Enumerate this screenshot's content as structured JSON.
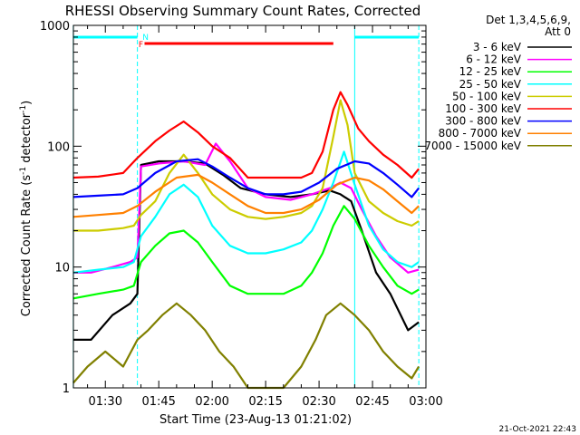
{
  "chart_data": {
    "type": "line",
    "title": "RHESSI Observing Summary Count Rates, Corrected",
    "xlabel": "Start Time (23-Aug-13 01:21:02)",
    "ylabel_main": "Corrected Count Rate (s",
    "ylabel_sup1": "-1",
    "ylabel_mid": " detector",
    "ylabel_sup2": "-1",
    "ylabel_end": ")",
    "y_scale": "log",
    "ylim": [
      1,
      1000
    ],
    "xlim": [
      "01:21:02",
      "03:00:00"
    ],
    "x_ticks": [
      "01:30",
      "01:45",
      "02:00",
      "02:15",
      "02:30",
      "02:45",
      "03:00"
    ],
    "y_ticks": [
      "1",
      "10",
      "100",
      "1000"
    ],
    "legend": {
      "placement": "right",
      "header1": "Det 1,3,4,5,6,9,",
      "header2": "Att 0"
    },
    "timestamp": "21-Oct-2021 22:43",
    "flags": [
      {
        "label": "F",
        "start": "01:41",
        "end": "02:34",
        "color": "#ff0000"
      },
      {
        "label": "N",
        "start": "01:39",
        "end": "01:39",
        "color": "#00ffff"
      }
    ],
    "night_intervals": [
      [
        "01:21",
        "01:39"
      ],
      [
        "02:40",
        "02:58"
      ]
    ],
    "series": [
      {
        "name": "3 - 6 keV",
        "color": "#000000",
        "t": [
          "01:21",
          "01:26",
          "01:32",
          "01:37",
          "01:39",
          "01:40",
          "01:45",
          "01:52",
          "01:58",
          "02:03",
          "02:08",
          "02:15",
          "02:22",
          "02:28",
          "02:33",
          "02:36",
          "02:39",
          "02:42",
          "02:46",
          "02:50",
          "02:55",
          "02:58"
        ],
        "values": [
          2.5,
          2.5,
          4,
          5,
          6,
          70,
          75,
          75,
          72,
          58,
          45,
          40,
          38,
          40,
          43,
          40,
          35,
          20,
          9,
          6,
          3,
          3.5
        ]
      },
      {
        "name": "6 - 12 keV",
        "color": "#ff00ff",
        "t": [
          "01:21",
          "01:26",
          "01:32",
          "01:37",
          "01:39",
          "01:40",
          "01:45",
          "01:52",
          "01:58",
          "02:01",
          "02:05",
          "02:10",
          "02:15",
          "02:22",
          "02:28",
          "02:33",
          "02:36",
          "02:39",
          "02:42",
          "02:46",
          "02:50",
          "02:55",
          "02:58"
        ],
        "values": [
          9,
          9,
          10,
          11,
          12,
          68,
          72,
          75,
          70,
          105,
          75,
          45,
          38,
          36,
          40,
          45,
          50,
          45,
          30,
          18,
          12,
          9,
          9.5
        ]
      },
      {
        "name": "12 - 25 keV",
        "color": "#00ff00",
        "t": [
          "01:21",
          "01:28",
          "01:35",
          "01:38",
          "01:40",
          "01:44",
          "01:48",
          "01:52",
          "01:56",
          "02:00",
          "02:05",
          "02:10",
          "02:15",
          "02:20",
          "02:25",
          "02:28",
          "02:31",
          "02:34",
          "02:37",
          "02:40",
          "02:44",
          "02:48",
          "02:52",
          "02:56",
          "02:58"
        ],
        "values": [
          5.5,
          6,
          6.5,
          7,
          11,
          15,
          19,
          20,
          16,
          11,
          7,
          6,
          6,
          6,
          7,
          9,
          13,
          22,
          32,
          25,
          15,
          10,
          7,
          6,
          6.5
        ]
      },
      {
        "name": "25 - 50 keV",
        "color": "#00ffff",
        "t": [
          "01:21",
          "01:28",
          "01:35",
          "01:38",
          "01:40",
          "01:44",
          "01:48",
          "01:52",
          "01:56",
          "02:00",
          "02:05",
          "02:10",
          "02:15",
          "02:20",
          "02:25",
          "02:28",
          "02:31",
          "02:34",
          "02:37",
          "02:40",
          "02:44",
          "02:48",
          "02:52",
          "02:56",
          "02:58"
        ],
        "values": [
          9,
          9.5,
          10,
          11,
          18,
          26,
          40,
          48,
          38,
          22,
          15,
          13,
          13,
          14,
          16,
          20,
          30,
          50,
          90,
          48,
          22,
          14,
          11,
          10,
          11
        ]
      },
      {
        "name": "50 - 100 keV",
        "color": "#cccc00",
        "t": [
          "01:21",
          "01:28",
          "01:35",
          "01:38",
          "01:40",
          "01:44",
          "01:48",
          "01:52",
          "01:56",
          "02:00",
          "02:05",
          "02:10",
          "02:15",
          "02:20",
          "02:25",
          "02:28",
          "02:31",
          "02:34",
          "02:36",
          "02:38",
          "02:40",
          "02:44",
          "02:48",
          "02:52",
          "02:56",
          "02:58"
        ],
        "values": [
          20,
          20,
          21,
          22,
          27,
          35,
          60,
          85,
          60,
          40,
          30,
          26,
          25,
          26,
          28,
          32,
          45,
          120,
          240,
          150,
          60,
          35,
          28,
          24,
          22,
          24
        ]
      },
      {
        "name": "100 - 300 keV",
        "color": "#ff0000",
        "t": [
          "01:21",
          "01:28",
          "01:35",
          "01:39",
          "01:44",
          "01:48",
          "01:52",
          "01:56",
          "02:00",
          "02:05",
          "02:10",
          "02:15",
          "02:20",
          "02:25",
          "02:28",
          "02:31",
          "02:34",
          "02:36",
          "02:38",
          "02:41",
          "02:44",
          "02:48",
          "02:52",
          "02:56",
          "02:58"
        ],
        "values": [
          55,
          56,
          60,
          80,
          110,
          135,
          160,
          130,
          100,
          80,
          55,
          55,
          55,
          55,
          60,
          90,
          200,
          280,
          220,
          140,
          110,
          85,
          70,
          55,
          65
        ]
      },
      {
        "name": "300 - 800 keV",
        "color": "#0000ff",
        "t": [
          "01:21",
          "01:28",
          "01:35",
          "01:39",
          "01:44",
          "01:50",
          "01:56",
          "02:00",
          "02:05",
          "02:10",
          "02:15",
          "02:20",
          "02:25",
          "02:30",
          "02:35",
          "02:40",
          "02:44",
          "02:48",
          "02:52",
          "02:56",
          "02:58"
        ],
        "values": [
          38,
          39,
          40,
          45,
          60,
          75,
          78,
          68,
          55,
          45,
          40,
          40,
          42,
          50,
          65,
          75,
          72,
          60,
          48,
          38,
          45
        ]
      },
      {
        "name": "800 - 7000 keV",
        "color": "#ff8000",
        "t": [
          "01:21",
          "01:28",
          "01:35",
          "01:39",
          "01:44",
          "01:50",
          "01:56",
          "02:00",
          "02:05",
          "02:10",
          "02:15",
          "02:20",
          "02:25",
          "02:30",
          "02:35",
          "02:40",
          "02:44",
          "02:48",
          "02:52",
          "02:56",
          "02:58"
        ],
        "values": [
          26,
          27,
          28,
          32,
          42,
          55,
          58,
          50,
          40,
          32,
          28,
          28,
          30,
          36,
          48,
          55,
          52,
          44,
          35,
          28,
          32
        ]
      },
      {
        "name": "7000 - 15000 keV",
        "color": "#808000",
        "t": [
          "01:21",
          "01:25",
          "01:30",
          "01:35",
          "01:39",
          "01:42",
          "01:46",
          "01:50",
          "01:54",
          "01:58",
          "02:02",
          "02:06",
          "02:10",
          "02:15",
          "02:20",
          "02:25",
          "02:29",
          "02:32",
          "02:36",
          "02:40",
          "02:44",
          "02:48",
          "02:52",
          "02:56",
          "02:58"
        ],
        "values": [
          1.1,
          1.5,
          2,
          1.5,
          2.5,
          3,
          4,
          5,
          4,
          3,
          2,
          1.5,
          1,
          1,
          1,
          1.5,
          2.5,
          4,
          5,
          4,
          3,
          2,
          1.5,
          1.2,
          1.5
        ]
      }
    ]
  }
}
